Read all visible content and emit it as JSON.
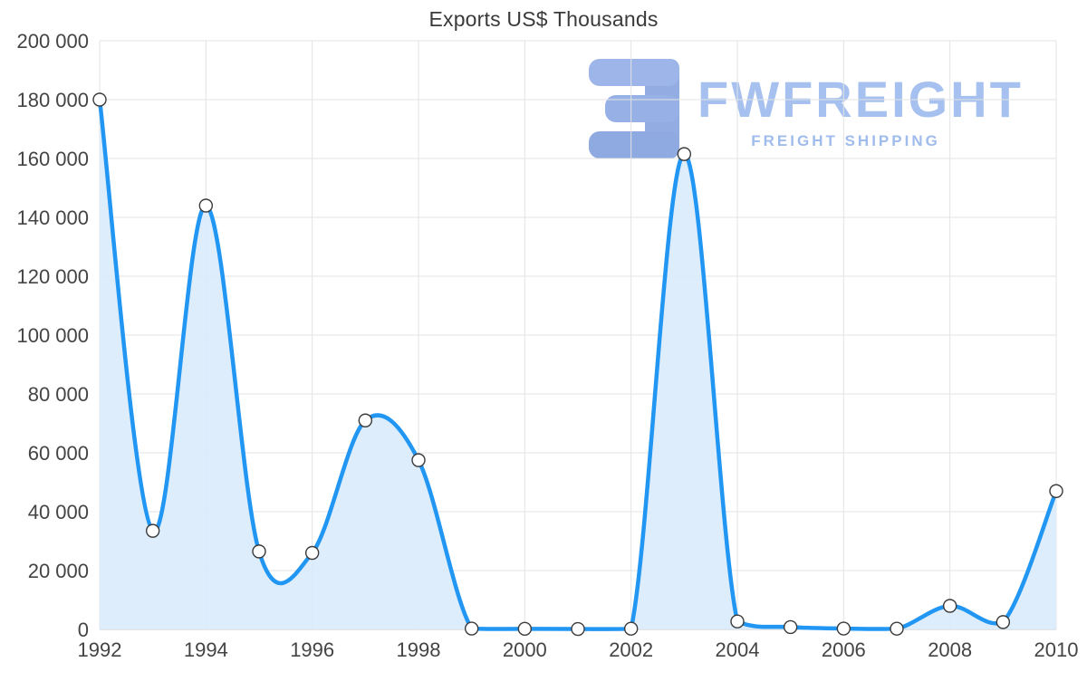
{
  "watermark": {
    "brand": "FWFREIGHT",
    "tagline": "FREIGHT SHIPPING",
    "logo_color": "#93ade3",
    "text_color": "#a6c1ef"
  },
  "chart_data": {
    "type": "area",
    "title": "Exports US$ Thousands",
    "xlabel": "",
    "ylabel": "",
    "x": [
      1992,
      1993,
      1994,
      1995,
      1996,
      1997,
      1998,
      1999,
      2000,
      2001,
      2002,
      2003,
      2004,
      2005,
      2006,
      2007,
      2008,
      2009,
      2010
    ],
    "series": [
      {
        "name": "Exports US$ Thousands",
        "values": [
          180000,
          33500,
          144000,
          26500,
          26000,
          71000,
          57500,
          300,
          200,
          150,
          250,
          161500,
          2700,
          800,
          300,
          250,
          8000,
          2500,
          47000
        ]
      }
    ],
    "ylim": [
      0,
      200000
    ],
    "ytick_step": 20000,
    "ytick_labels": [
      "0",
      "20 000",
      "40 000",
      "60 000",
      "80 000",
      "100 000",
      "120 000",
      "140 000",
      "160 000",
      "180 000",
      "200 000"
    ],
    "xtick_labels": [
      "1992",
      "1994",
      "1996",
      "1998",
      "2000",
      "2002",
      "2004",
      "2006",
      "2008",
      "2010"
    ],
    "grid": true,
    "legend_position": "none",
    "line_color": "#2196f3",
    "area_color": "#d9ebfc",
    "grid_color": "#e3e3e3",
    "axis_label_color": "#444444",
    "marker": {
      "fill": "#ffffff",
      "stroke": "#3a3a3a",
      "radius": 7
    }
  }
}
